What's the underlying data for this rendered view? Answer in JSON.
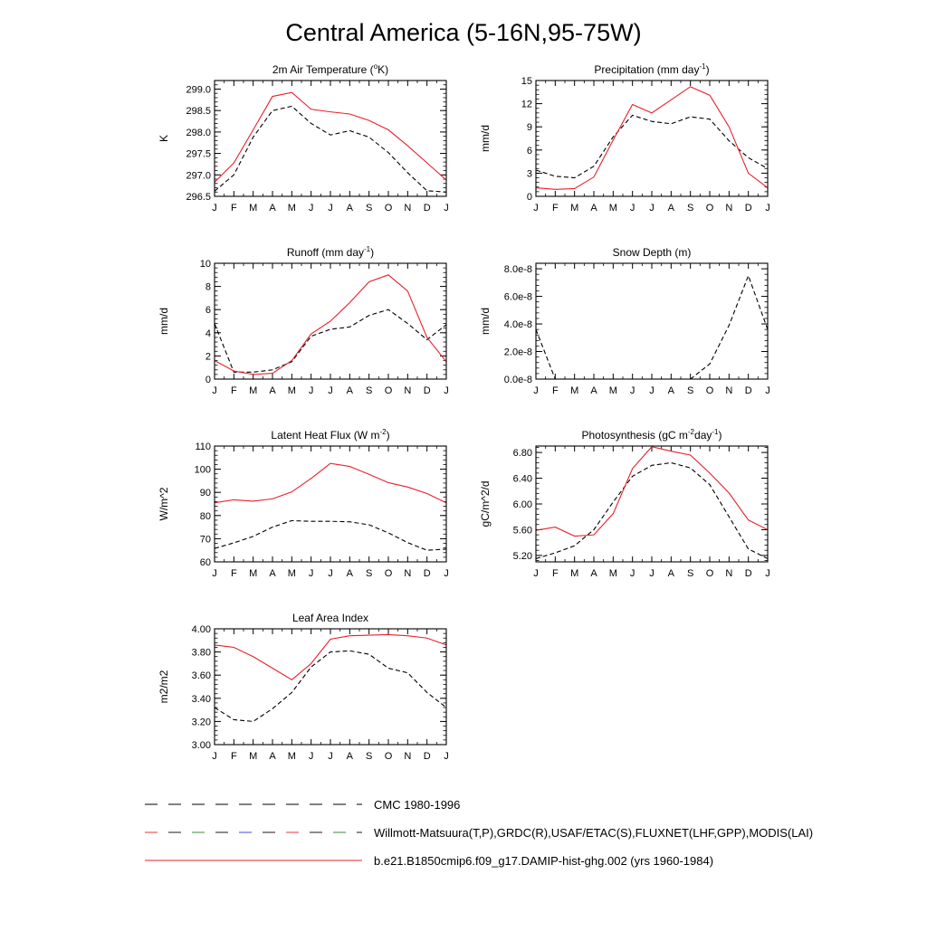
{
  "page_title": "Central America (5-16N,95-75W)",
  "legend": {
    "items": [
      {
        "text": "CMC 1980-1996",
        "color": "#000000",
        "style": "dash-sparse"
      },
      {
        "text": "Willmott-Matsuura(T,P),GRDC(R),USAF/ETAC(S),FLUXNET(LHF,GPP),MODIS(LAI)",
        "color": "#000000",
        "style": "dash-multicolor"
      },
      {
        "text": "b.e21.B1850cmip6.f09_g17.DAMIP-hist-ghg.002 (yrs 1960-1984)",
        "color": "#e8202a",
        "style": "solid"
      }
    ]
  },
  "colors": {
    "model": "#e8202a",
    "obs": "#000000"
  },
  "chart_data": [
    {
      "type": "line",
      "title": "2m Air Temperature (°K)",
      "title_parts": [
        {
          "t": "2m Air Temperature ("
        },
        {
          "t": "o",
          "sup": true
        },
        {
          "t": "K)"
        }
      ],
      "ylabel": "K",
      "ylim": [
        296.5,
        299.2
      ],
      "yticks": [
        296.5,
        297.0,
        297.5,
        298.0,
        298.5,
        299.0
      ],
      "ytick_labels": [
        "296.5",
        "297.0",
        "297.5",
        "298.0",
        "298.5",
        "299.0"
      ],
      "x": [
        "J",
        "F",
        "M",
        "A",
        "M",
        "J",
        "J",
        "A",
        "S",
        "O",
        "N",
        "D",
        "J"
      ],
      "series": [
        {
          "role": "model",
          "values": [
            296.83,
            297.28,
            298.05,
            298.83,
            298.92,
            298.53,
            298.47,
            298.42,
            298.27,
            298.05,
            297.68,
            297.28,
            296.88
          ]
        },
        {
          "role": "obs",
          "values": [
            296.62,
            297.0,
            297.88,
            298.5,
            298.6,
            298.2,
            297.93,
            298.03,
            297.88,
            297.52,
            297.05,
            296.63,
            296.6
          ]
        }
      ]
    },
    {
      "type": "line",
      "title": "Precipitation (mm day-1)",
      "title_parts": [
        {
          "t": "Precipitation (mm day"
        },
        {
          "t": "-1",
          "sup": true
        },
        {
          "t": ")"
        }
      ],
      "ylabel": "mm/d",
      "ylim": [
        0,
        15
      ],
      "yticks": [
        0,
        3,
        6,
        9,
        12,
        15
      ],
      "ytick_labels": [
        "0",
        "3",
        "6",
        "9",
        "12",
        "15"
      ],
      "x": [
        "J",
        "F",
        "M",
        "A",
        "M",
        "J",
        "J",
        "A",
        "S",
        "O",
        "N",
        "D",
        "J"
      ],
      "series": [
        {
          "role": "model",
          "values": [
            1.1,
            0.9,
            1.0,
            2.5,
            7.3,
            11.9,
            10.8,
            12.5,
            14.2,
            13.1,
            9.0,
            3.0,
            1.1
          ]
        },
        {
          "role": "obs",
          "values": [
            3.4,
            2.6,
            2.4,
            3.9,
            7.7,
            10.5,
            9.7,
            9.4,
            10.3,
            10.0,
            7.2,
            5.0,
            3.6
          ]
        }
      ]
    },
    {
      "type": "line",
      "title": "Runoff (mm day-1)",
      "title_parts": [
        {
          "t": "Runoff (mm day"
        },
        {
          "t": "-1",
          "sup": true
        },
        {
          "t": ")"
        }
      ],
      "ylabel": "mm/d",
      "ylim": [
        0,
        10
      ],
      "yticks": [
        0,
        2,
        4,
        6,
        8,
        10
      ],
      "ytick_labels": [
        "0",
        "2",
        "4",
        "6",
        "8",
        "10"
      ],
      "x": [
        "J",
        "F",
        "M",
        "A",
        "M",
        "J",
        "J",
        "A",
        "S",
        "O",
        "N",
        "D",
        "J"
      ],
      "series": [
        {
          "role": "model",
          "values": [
            1.6,
            0.7,
            0.4,
            0.5,
            1.6,
            3.9,
            5.0,
            6.6,
            8.4,
            9.0,
            7.6,
            3.6,
            1.5
          ]
        },
        {
          "role": "obs",
          "values": [
            4.8,
            0.6,
            0.6,
            0.8,
            1.5,
            3.7,
            4.3,
            4.5,
            5.5,
            6.0,
            4.8,
            3.4,
            4.7
          ]
        }
      ]
    },
    {
      "type": "line",
      "title": "Snow Depth (m)",
      "title_parts": [
        {
          "t": "Snow Depth (m)"
        }
      ],
      "ylabel": "mm/d",
      "ylim": [
        0,
        8.4e-08
      ],
      "yticks": [
        0,
        2e-08,
        4e-08,
        6e-08,
        8e-08
      ],
      "ytick_labels": [
        "0.0e-8",
        "2.0e-8",
        "4.0e-8",
        "6.0e-8",
        "8.0e-8"
      ],
      "x": [
        "J",
        "F",
        "M",
        "A",
        "M",
        "J",
        "J",
        "A",
        "S",
        "O",
        "N",
        "D",
        "J"
      ],
      "series": [
        {
          "role": "model",
          "values": [
            0,
            0,
            0,
            0,
            0,
            0,
            0,
            0,
            0,
            0,
            0,
            0,
            0
          ]
        },
        {
          "role": "obs",
          "values": [
            3.6e-08,
            0,
            0,
            0,
            0,
            0,
            0,
            0,
            0,
            1.1e-08,
            3.9e-08,
            7.5e-08,
            3.6e-08
          ]
        }
      ]
    },
    {
      "type": "line",
      "title": "Latent Heat Flux (W m-2)",
      "title_parts": [
        {
          "t": "Latent Heat Flux (W m"
        },
        {
          "t": "-2",
          "sup": true
        },
        {
          "t": ")"
        }
      ],
      "ylabel": "W/m^2",
      "ylim": [
        60,
        110
      ],
      "yticks": [
        60,
        70,
        80,
        90,
        100,
        110
      ],
      "ytick_labels": [
        "60",
        "70",
        "80",
        "90",
        "100",
        "110"
      ],
      "x": [
        "J",
        "F",
        "M",
        "A",
        "M",
        "J",
        "J",
        "A",
        "S",
        "O",
        "N",
        "D",
        "J"
      ],
      "series": [
        {
          "role": "model",
          "values": [
            85.5,
            86.8,
            86.2,
            87.2,
            90.2,
            96.0,
            102.5,
            101.2,
            97.8,
            94.2,
            92.3,
            89.5,
            85.5
          ]
        },
        {
          "role": "obs",
          "values": [
            65.8,
            68.2,
            71.0,
            75.0,
            77.8,
            77.5,
            77.5,
            77.3,
            76.0,
            72.5,
            68.3,
            65.0,
            65.5
          ]
        }
      ]
    },
    {
      "type": "line",
      "title": "Photosynthesis (gC m-2day-1)",
      "title_parts": [
        {
          "t": "Photosynthesis (gC m"
        },
        {
          "t": "-2",
          "sup": true
        },
        {
          "t": "day"
        },
        {
          "t": "-1",
          "sup": true
        },
        {
          "t": ")"
        }
      ],
      "ylabel": "gC/m^2/d",
      "ylim": [
        5.1,
        6.9
      ],
      "yticks": [
        5.2,
        5.6,
        6.0,
        6.4,
        6.8
      ],
      "ytick_labels": [
        "5.20",
        "5.60",
        "6.00",
        "6.40",
        "6.80"
      ],
      "x": [
        "J",
        "F",
        "M",
        "A",
        "M",
        "J",
        "J",
        "A",
        "S",
        "O",
        "N",
        "D",
        "J"
      ],
      "series": [
        {
          "role": "model",
          "values": [
            5.59,
            5.64,
            5.5,
            5.52,
            5.85,
            6.55,
            6.89,
            6.82,
            6.76,
            6.48,
            6.17,
            5.75,
            5.6
          ]
        },
        {
          "role": "obs",
          "values": [
            5.15,
            5.24,
            5.35,
            5.6,
            6.03,
            6.43,
            6.6,
            6.64,
            6.56,
            6.3,
            5.8,
            5.3,
            5.15
          ]
        }
      ]
    },
    {
      "type": "line",
      "title": "Leaf Area Index",
      "title_parts": [
        {
          "t": "Leaf Area Index"
        }
      ],
      "ylabel": "m2/m2",
      "ylim": [
        3.0,
        4.0
      ],
      "yticks": [
        3.0,
        3.2,
        3.4,
        3.6,
        3.8,
        4.0
      ],
      "ytick_labels": [
        "3.00",
        "3.20",
        "3.40",
        "3.60",
        "3.80",
        "4.00"
      ],
      "x": [
        "J",
        "F",
        "M",
        "A",
        "M",
        "J",
        "J",
        "A",
        "S",
        "O",
        "N",
        "D",
        "J"
      ],
      "series": [
        {
          "role": "model",
          "values": [
            3.86,
            3.84,
            3.76,
            3.66,
            3.56,
            3.7,
            3.91,
            3.94,
            3.945,
            3.95,
            3.94,
            3.92,
            3.86
          ]
        },
        {
          "role": "obs",
          "values": [
            3.32,
            3.215,
            3.2,
            3.31,
            3.45,
            3.67,
            3.8,
            3.81,
            3.78,
            3.66,
            3.62,
            3.45,
            3.32
          ]
        }
      ]
    }
  ]
}
